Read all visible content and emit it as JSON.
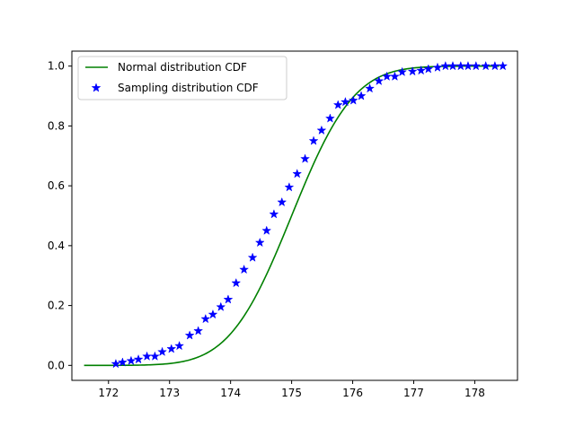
{
  "chart_data": {
    "type": "line+scatter",
    "title": "",
    "xlabel": "",
    "ylabel": "",
    "xlim": [
      171.4,
      178.7
    ],
    "ylim": [
      -0.05,
      1.05
    ],
    "x_ticks": [
      172,
      173,
      174,
      175,
      176,
      177,
      178
    ],
    "y_ticks": [
      0.0,
      0.2,
      0.4,
      0.6,
      0.8,
      1.0
    ],
    "x_tick_labels": [
      "172",
      "173",
      "174",
      "175",
      "176",
      "177",
      "178"
    ],
    "y_tick_labels": [
      "0.0",
      "0.2",
      "0.4",
      "0.6",
      "0.8",
      "1.0"
    ],
    "grid": false,
    "legend_position": "upper-left",
    "series": [
      {
        "name": "Normal distribution CDF",
        "type": "line",
        "color": "#008000",
        "mean": 175.0,
        "std": 0.8,
        "x_range": [
          171.6,
          178.4
        ]
      },
      {
        "name": "Sampling distribution CDF",
        "type": "scatter",
        "marker": "star",
        "color": "#0000ff",
        "x": [
          172.12,
          172.23,
          172.37,
          172.49,
          172.63,
          172.76,
          172.88,
          173.03,
          173.16,
          173.33,
          173.47,
          173.59,
          173.71,
          173.84,
          173.96,
          174.09,
          174.22,
          174.36,
          174.48,
          174.59,
          174.71,
          174.84,
          174.96,
          175.09,
          175.22,
          175.36,
          175.49,
          175.63,
          175.76,
          175.88,
          176.01,
          176.14,
          176.28,
          176.43,
          176.56,
          176.69,
          176.81,
          176.98,
          177.12,
          177.24,
          177.39,
          177.52,
          177.64,
          177.77,
          177.89,
          178.02,
          178.18,
          178.33,
          178.46
        ],
        "y": [
          0.005,
          0.01,
          0.015,
          0.02,
          0.03,
          0.03,
          0.045,
          0.055,
          0.065,
          0.1,
          0.115,
          0.155,
          0.17,
          0.195,
          0.22,
          0.275,
          0.32,
          0.36,
          0.41,
          0.45,
          0.505,
          0.545,
          0.595,
          0.64,
          0.69,
          0.75,
          0.785,
          0.825,
          0.87,
          0.88,
          0.885,
          0.9,
          0.925,
          0.95,
          0.965,
          0.965,
          0.98,
          0.982,
          0.985,
          0.99,
          0.995,
          1.0,
          1.0,
          1.0,
          1.0,
          1.0,
          1.0,
          1.0,
          1.0
        ]
      }
    ]
  }
}
